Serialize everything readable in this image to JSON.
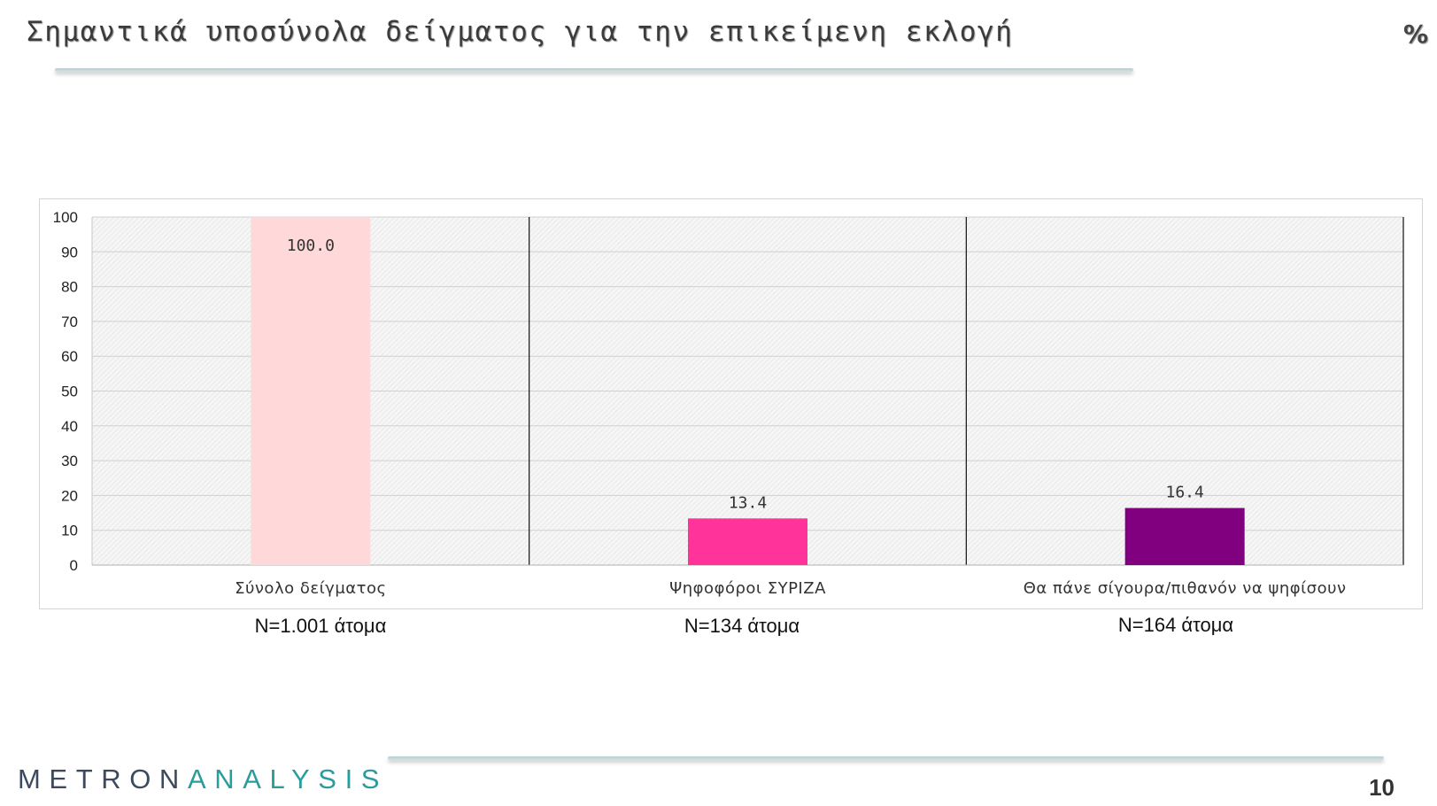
{
  "header": {
    "title": "Σημαντικά υποσύνολα δείγματος για την επικείμενη εκλογή",
    "unit": "%"
  },
  "chart_data": {
    "type": "bar",
    "categories": [
      "Σύνολο δείγματος",
      "Ψηφοφόροι ΣΥΡΙΖΑ",
      "Θα πάνε σίγουρα/πιθανόν να ψηφίσουν"
    ],
    "values": [
      100.0,
      13.4,
      16.4
    ],
    "value_labels": [
      "100.0",
      "13.4",
      "16.4"
    ],
    "colors": [
      "#ffd9d9",
      "#ff3399",
      "#800080"
    ],
    "ylim": [
      0,
      100
    ],
    "yticks": [
      0,
      10,
      20,
      30,
      40,
      50,
      60,
      70,
      80,
      90,
      100
    ],
    "grid": true,
    "title": "",
    "xlabel": "",
    "ylabel": ""
  },
  "sample_sizes": [
    "N=1.001 άτομα",
    "N=134 άτομα",
    "N=164 άτομα"
  ],
  "footer": {
    "logo_part1": "METRON",
    "logo_part2": "ANALYSIS",
    "page_number": "10"
  }
}
